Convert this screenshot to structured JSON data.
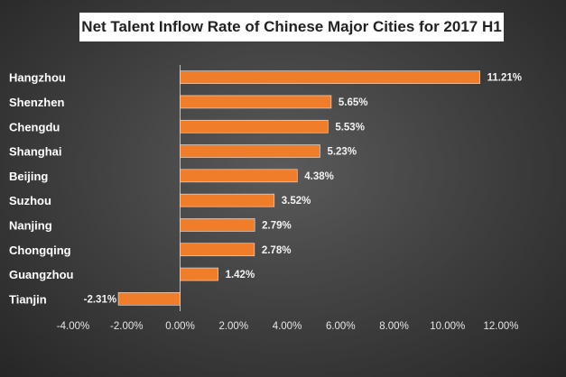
{
  "chart_data": {
    "type": "bar",
    "orientation": "horizontal",
    "title": "Net Talent Inflow Rate of Chinese Major Cities for 2017 H1",
    "categories": [
      "Hangzhou",
      "Shenzhen",
      "Chengdu",
      "Shanghai",
      "Beijing",
      "Suzhou",
      "Nanjing",
      "Chongqing",
      "Guangzhou",
      "Tianjin"
    ],
    "values": [
      11.21,
      5.65,
      5.53,
      5.23,
      4.38,
      3.52,
      2.79,
      2.78,
      1.42,
      -2.31
    ],
    "data_labels": [
      "11.21%",
      "5.65%",
      "5.53%",
      "5.23%",
      "4.38%",
      "3.52%",
      "2.79%",
      "2.78%",
      "1.42%",
      "-2.31%"
    ],
    "x_ticks": [
      "-4.00%",
      "-2.00%",
      "0.00%",
      "2.00%",
      "4.00%",
      "6.00%",
      "8.00%",
      "10.00%",
      "12.00%"
    ],
    "x_tick_values": [
      -4,
      -2,
      0,
      2,
      4,
      6,
      8,
      10,
      12
    ],
    "xlim": [
      -4,
      12
    ],
    "xlabel": "",
    "ylabel": "",
    "grid": false,
    "legend": "none",
    "colors": {
      "bar": "#f07d2a",
      "bar_edge": "#e8e8e8",
      "axis": "#bfbfbf",
      "category_label_bg": "#4a4a4a"
    }
  }
}
